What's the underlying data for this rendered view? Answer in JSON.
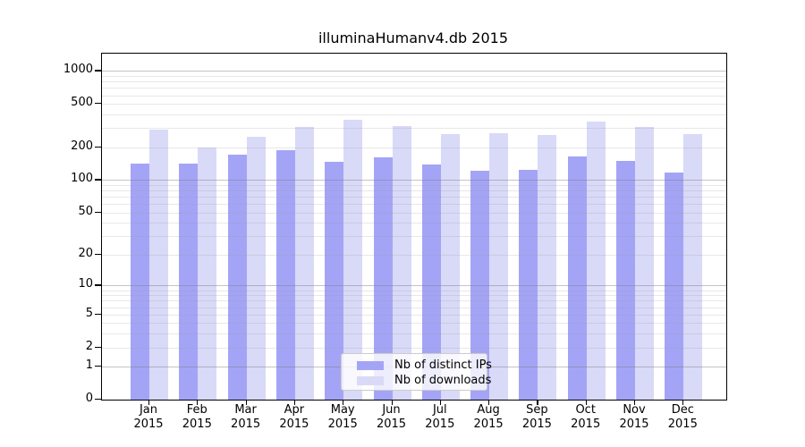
{
  "chart_data": {
    "type": "bar",
    "title": "illuminaHumanv4.db 2015",
    "categories": [
      "Jan 2015",
      "Feb 2015",
      "Mar 2015",
      "Apr 2015",
      "May 2015",
      "Jun 2015",
      "Jul 2015",
      "Aug 2015",
      "Sep 2015",
      "Oct 2015",
      "Nov 2015",
      "Dec 2015"
    ],
    "series": [
      {
        "key": "distinct-ips",
        "name": "Nb of distinct IPs",
        "color": "#a4a4f6",
        "values": [
          142,
          143,
          170,
          188,
          147,
          162,
          140,
          123,
          124,
          166,
          150,
          117
        ]
      },
      {
        "key": "downloads",
        "name": "Nb of downloads",
        "color": "#d9d9f8",
        "values": [
          290,
          201,
          250,
          305,
          357,
          312,
          267,
          270,
          262,
          347,
          310,
          263
        ]
      }
    ],
    "xlabel": "",
    "ylabel": "",
    "yscale": "log1p",
    "ylim": [
      0,
      1440
    ],
    "y_ticks": [
      {
        "value": 0,
        "label": "0"
      },
      {
        "value": 1,
        "label": "1"
      },
      {
        "value": 2,
        "label": "2"
      },
      {
        "value": 5,
        "label": "5"
      },
      {
        "value": 10,
        "label": "10"
      },
      {
        "value": 20,
        "label": "20"
      },
      {
        "value": 50,
        "label": "50"
      },
      {
        "value": 100,
        "label": "100"
      },
      {
        "value": 200,
        "label": "200"
      },
      {
        "value": 500,
        "label": "500"
      },
      {
        "value": 1000,
        "label": "1000"
      }
    ],
    "grid": "horizontal",
    "legend_position": "lower-center-inside"
  }
}
